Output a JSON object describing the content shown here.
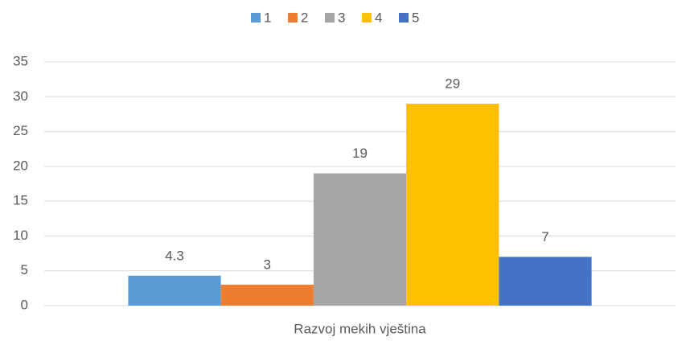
{
  "chart_data": {
    "type": "bar",
    "categories": [
      "Razvoj mekih vještina"
    ],
    "series": [
      {
        "name": "1",
        "color": "#5b9bd5",
        "values": [
          4.3
        ]
      },
      {
        "name": "2",
        "color": "#ed7d31",
        "values": [
          3
        ]
      },
      {
        "name": "3",
        "color": "#a5a5a5",
        "values": [
          19
        ]
      },
      {
        "name": "4",
        "color": "#ffc000",
        "values": [
          29
        ]
      },
      {
        "name": "5",
        "color": "#4472c4",
        "values": [
          7
        ]
      }
    ],
    "ylim": [
      0,
      35
    ],
    "yticks": [
      0,
      5,
      10,
      15,
      20,
      25,
      30,
      35
    ],
    "grid": true,
    "legend": "top"
  }
}
